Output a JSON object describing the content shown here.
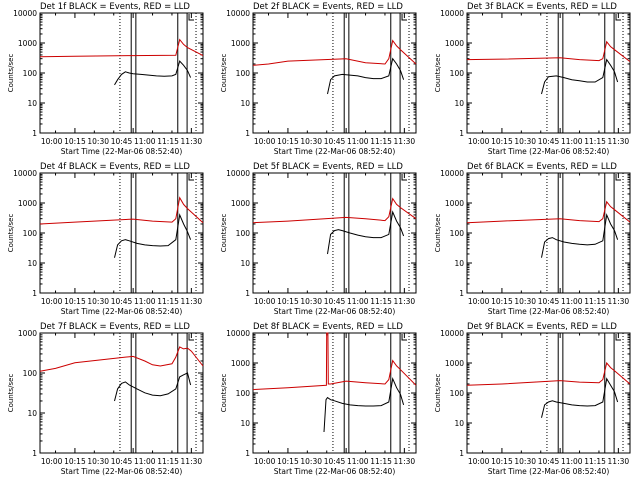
{
  "chart_data": [
    {
      "type": "line",
      "title": "Det 1f BLACK = Events, RED = LLD",
      "xlabel": "Start Time (22-Mar-06 08:52:40)",
      "ylabel": "Counts/sec",
      "xticks": [
        "10:00",
        "10:15",
        "10:30",
        "10:45",
        "11:00",
        "11:15",
        "11:30"
      ],
      "yticks": [
        "1",
        "10",
        "100",
        "1000",
        "10000"
      ],
      "yscale": "log",
      "ylim": [
        1,
        10000
      ],
      "xlim_minutes": [
        -9,
        33
      ],
      "solid_markers_minutes": [
        14.5,
        15.7,
        26.5,
        28.9
      ],
      "dotted_markers_minutes": [
        11.6,
        31.2
      ],
      "series": [
        {
          "name": "RED = LLD",
          "color": "#cc0000",
          "x": [
            -9,
            0,
            15,
            26,
            27,
            28,
            29,
            33
          ],
          "y": [
            350,
            360,
            380,
            390,
            1300,
            900,
            700,
            380
          ]
        },
        {
          "name": "BLACK = Events",
          "color": "#000000",
          "x": [
            10.2,
            11,
            12,
            13,
            14,
            15,
            17,
            19,
            21,
            23,
            25,
            26,
            27,
            28,
            29,
            29.8
          ],
          "y": [
            40,
            60,
            90,
            110,
            100,
            95,
            90,
            85,
            80,
            78,
            80,
            90,
            250,
            180,
            120,
            70
          ]
        }
      ]
    },
    {
      "type": "line",
      "title": "Det 2f BLACK = Events, RED = LLD",
      "xlabel": "Start Time (22-Mar-06 08:52:40)",
      "ylabel": "Counts/sec",
      "xticks": [
        "10:00",
        "10:15",
        "10:30",
        "10:45",
        "11:00",
        "11:15",
        "11:30"
      ],
      "yticks": [
        "1",
        "10",
        "100",
        "1000",
        "10000"
      ],
      "yscale": "log",
      "ylim": [
        1,
        10000
      ],
      "xlim_minutes": [
        -9,
        33
      ],
      "solid_markers_minutes": [
        14.5,
        15.7,
        26.5,
        28.9
      ],
      "dotted_markers_minutes": [
        11.6,
        31.2
      ],
      "series": [
        {
          "name": "RED = LLD",
          "color": "#cc0000",
          "x": [
            -9,
            -5,
            0,
            15,
            20,
            25,
            26,
            27,
            28,
            29,
            33
          ],
          "y": [
            180,
            200,
            250,
            300,
            220,
            200,
            300,
            1200,
            800,
            600,
            200
          ]
        },
        {
          "name": "BLACK = Events",
          "color": "#000000",
          "x": [
            10.2,
            11,
            12,
            14,
            16,
            18,
            20,
            22,
            24,
            26,
            27,
            28,
            29,
            29.8
          ],
          "y": [
            20,
            60,
            80,
            90,
            85,
            80,
            70,
            65,
            65,
            80,
            300,
            200,
            120,
            60
          ]
        }
      ]
    },
    {
      "type": "line",
      "title": "Det 3f BLACK = Events, RED = LLD",
      "xlabel": "Start Time (22-Mar-06 08:52:40)",
      "ylabel": "Counts/sec",
      "xticks": [
        "10:00",
        "10:15",
        "10:30",
        "10:45",
        "11:00",
        "11:15",
        "11:30"
      ],
      "yticks": [
        "1",
        "10",
        "100",
        "1000",
        "10000"
      ],
      "yscale": "log",
      "ylim": [
        1,
        10000
      ],
      "xlim_minutes": [
        -9,
        33
      ],
      "solid_markers_minutes": [
        14.5,
        15.7,
        26.5,
        28.9
      ],
      "dotted_markers_minutes": [
        11.6,
        31.2
      ],
      "series": [
        {
          "name": "RED = LLD",
          "color": "#cc0000",
          "x": [
            -9,
            0,
            15,
            20,
            25,
            26,
            27,
            28,
            29,
            33
          ],
          "y": [
            280,
            290,
            320,
            280,
            260,
            300,
            1100,
            750,
            600,
            240
          ]
        },
        {
          "name": "BLACK = Events",
          "color": "#000000",
          "x": [
            10.2,
            11,
            12,
            14,
            16,
            18,
            20,
            22,
            24,
            26,
            27,
            28,
            29,
            29.8
          ],
          "y": [
            20,
            50,
            75,
            80,
            70,
            60,
            55,
            50,
            50,
            70,
            280,
            180,
            110,
            50
          ]
        }
      ]
    },
    {
      "type": "line",
      "title": "Det 4f BLACK = Events, RED = LLD",
      "xlabel": "Start Time (22-Mar-06 08:52:40)",
      "ylabel": "Counts/sec",
      "xticks": [
        "10:00",
        "10:15",
        "10:30",
        "10:45",
        "11:00",
        "11:15",
        "11:30"
      ],
      "yticks": [
        "1",
        "10",
        "100",
        "1000",
        "10000"
      ],
      "yscale": "log",
      "ylim": [
        1,
        10000
      ],
      "xlim_minutes": [
        -9,
        33
      ],
      "solid_markers_minutes": [
        14.5,
        15.7,
        26.5,
        28.9
      ],
      "dotted_markers_minutes": [
        11.6,
        31.2
      ],
      "series": [
        {
          "name": "RED = LLD",
          "color": "#cc0000",
          "x": [
            -9,
            0,
            15,
            20,
            25,
            26,
            27,
            28,
            29,
            33
          ],
          "y": [
            200,
            230,
            290,
            250,
            230,
            300,
            1500,
            900,
            650,
            220
          ]
        },
        {
          "name": "BLACK = Events",
          "color": "#000000",
          "x": [
            10.2,
            11,
            12,
            13,
            14,
            16,
            18,
            20,
            22,
            24,
            26,
            27,
            28,
            29,
            29.8
          ],
          "y": [
            15,
            40,
            55,
            60,
            55,
            45,
            40,
            38,
            37,
            38,
            60,
            400,
            200,
            110,
            60
          ]
        }
      ]
    },
    {
      "type": "line",
      "title": "Det 5f BLACK = Events, RED = LLD",
      "xlabel": "Start Time (22-Mar-06 08:52:40)",
      "ylabel": "Counts/sec",
      "xticks": [
        "10:00",
        "10:15",
        "10:30",
        "10:45",
        "11:00",
        "11:15",
        "11:30"
      ],
      "yticks": [
        "1",
        "10",
        "100",
        "1000",
        "10000"
      ],
      "yscale": "log",
      "ylim": [
        1,
        10000
      ],
      "xlim_minutes": [
        -9,
        33
      ],
      "solid_markers_minutes": [
        14.5,
        15.7,
        26.5,
        28.9
      ],
      "dotted_markers_minutes": [
        11.6,
        31.2
      ],
      "series": [
        {
          "name": "RED = LLD",
          "color": "#cc0000",
          "x": [
            -9,
            0,
            15,
            20,
            25,
            26,
            27,
            28,
            29,
            33
          ],
          "y": [
            220,
            250,
            330,
            300,
            260,
            350,
            1400,
            900,
            700,
            300
          ]
        },
        {
          "name": "BLACK = Events",
          "color": "#000000",
          "x": [
            10.2,
            11,
            12,
            13,
            14,
            16,
            18,
            20,
            22,
            24,
            26,
            27,
            28,
            29,
            29.8
          ],
          "y": [
            20,
            90,
            120,
            130,
            120,
            100,
            85,
            75,
            70,
            70,
            90,
            500,
            250,
            150,
            80
          ]
        }
      ]
    },
    {
      "type": "line",
      "title": "Det 6f BLACK = Events, RED = LLD",
      "xlabel": "Start Time (22-Mar-06 08:52:40)",
      "ylabel": "Counts/sec",
      "xticks": [
        "10:00",
        "10:15",
        "10:30",
        "10:45",
        "11:00",
        "11:15",
        "11:30"
      ],
      "yticks": [
        "1",
        "10",
        "100",
        "1000",
        "10000"
      ],
      "yscale": "log",
      "ylim": [
        1,
        10000
      ],
      "xlim_minutes": [
        -9,
        33
      ],
      "solid_markers_minutes": [
        14.5,
        15.7,
        26.5,
        28.9
      ],
      "dotted_markers_minutes": [
        11.6,
        31.2
      ],
      "series": [
        {
          "name": "RED = LLD",
          "color": "#cc0000",
          "x": [
            -9,
            0,
            15,
            20,
            25,
            26,
            27,
            28,
            29,
            33
          ],
          "y": [
            220,
            250,
            300,
            260,
            240,
            300,
            1100,
            750,
            600,
            230
          ]
        },
        {
          "name": "BLACK = Events",
          "color": "#000000",
          "x": [
            10.2,
            11,
            12,
            13,
            14,
            16,
            18,
            20,
            22,
            24,
            26,
            27,
            28,
            29,
            29.8
          ],
          "y": [
            15,
            50,
            65,
            70,
            60,
            50,
            45,
            42,
            40,
            42,
            55,
            400,
            200,
            120,
            60
          ]
        }
      ]
    },
    {
      "type": "line",
      "title": "Det 7f BLACK = Events, RED = LLD",
      "xlabel": "Start Time (22-Mar-06 08:52:40)",
      "ylabel": "Counts/sec",
      "xticks": [
        "10:00",
        "10:15",
        "10:30",
        "10:45",
        "11:00",
        "11:15",
        "11:30"
      ],
      "yticks": [
        "1",
        "10",
        "100",
        "1000"
      ],
      "yscale": "log",
      "ylim": [
        1,
        1000
      ],
      "xlim_minutes": [
        -9,
        33
      ],
      "solid_markers_minutes": [
        14.5,
        15.7,
        26.5,
        28.9
      ],
      "dotted_markers_minutes": [
        11.6,
        31.2
      ],
      "series": [
        {
          "name": "RED = LLD",
          "color": "#cc0000",
          "x": [
            -9,
            -5,
            0,
            13,
            15,
            18,
            20,
            22,
            25,
            26,
            27,
            28,
            29,
            30,
            33
          ],
          "y": [
            110,
            130,
            180,
            250,
            260,
            200,
            160,
            150,
            170,
            250,
            450,
            400,
            420,
            350,
            150
          ]
        },
        {
          "name": "BLACK = Events",
          "color": "#000000",
          "x": [
            10.2,
            11,
            12,
            13,
            14,
            16,
            18,
            20,
            22,
            24,
            26,
            27,
            28,
            29,
            29.8
          ],
          "y": [
            20,
            40,
            55,
            60,
            50,
            40,
            32,
            28,
            27,
            30,
            40,
            80,
            90,
            100,
            50
          ]
        }
      ]
    },
    {
      "type": "line",
      "title": "Det 8f BLACK = Events, RED = LLD",
      "xlabel": "Start Time (22-Mar-06 08:52:40)",
      "ylabel": "Counts/sec",
      "xticks": [
        "10:00",
        "10:15",
        "10:30",
        "10:45",
        "11:00",
        "11:15",
        "11:30"
      ],
      "yticks": [
        "1",
        "10",
        "100",
        "1000",
        "10000"
      ],
      "yscale": "log",
      "ylim": [
        1,
        10000
      ],
      "xlim_minutes": [
        -9,
        33
      ],
      "solid_markers_minutes": [
        14.5,
        15.7,
        26.5,
        28.9
      ],
      "dotted_markers_minutes": [
        11.6,
        31.2
      ],
      "series": [
        {
          "name": "RED = LLD",
          "color": "#cc0000",
          "x": [
            -9,
            0,
            9.9,
            10,
            10.3,
            10.4,
            11,
            15,
            20,
            25,
            26,
            27,
            28,
            29,
            33
          ],
          "y": [
            130,
            150,
            180,
            10000,
            10000,
            200,
            200,
            250,
            220,
            200,
            280,
            1200,
            800,
            600,
            180
          ]
        },
        {
          "name": "BLACK = Events",
          "color": "#000000",
          "x": [
            9.3,
            9.8,
            10.2,
            11,
            12,
            14,
            16,
            18,
            20,
            22,
            24,
            26,
            27,
            28,
            29,
            29.8
          ],
          "y": [
            5,
            60,
            70,
            60,
            55,
            45,
            40,
            38,
            37,
            37,
            38,
            50,
            300,
            150,
            90,
            40
          ]
        }
      ]
    },
    {
      "type": "line",
      "title": "Det 9f BLACK = Events, RED = LLD",
      "xlabel": "Start Time (22-Mar-06 08:52:40)",
      "ylabel": "Counts/sec",
      "xticks": [
        "10:00",
        "10:15",
        "10:30",
        "10:45",
        "11:00",
        "11:15",
        "11:30"
      ],
      "yticks": [
        "1",
        "10",
        "100",
        "1000",
        "10000"
      ],
      "yscale": "log",
      "ylim": [
        1,
        10000
      ],
      "xlim_minutes": [
        -9,
        33
      ],
      "solid_markers_minutes": [
        14.5,
        15.7,
        26.5,
        28.9
      ],
      "dotted_markers_minutes": [
        11.6,
        31.2
      ],
      "series": [
        {
          "name": "RED = LLD",
          "color": "#cc0000",
          "x": [
            -9,
            0,
            15,
            20,
            25,
            26,
            27,
            28,
            29,
            33
          ],
          "y": [
            180,
            200,
            260,
            230,
            220,
            280,
            1000,
            700,
            550,
            200
          ]
        },
        {
          "name": "BLACK = Events",
          "color": "#000000",
          "x": [
            10.2,
            11,
            12,
            13,
            14,
            16,
            18,
            20,
            22,
            24,
            26,
            27,
            28,
            29,
            29.8
          ],
          "y": [
            15,
            40,
            50,
            55,
            50,
            45,
            40,
            38,
            37,
            38,
            50,
            300,
            180,
            110,
            50
          ]
        }
      ]
    }
  ]
}
